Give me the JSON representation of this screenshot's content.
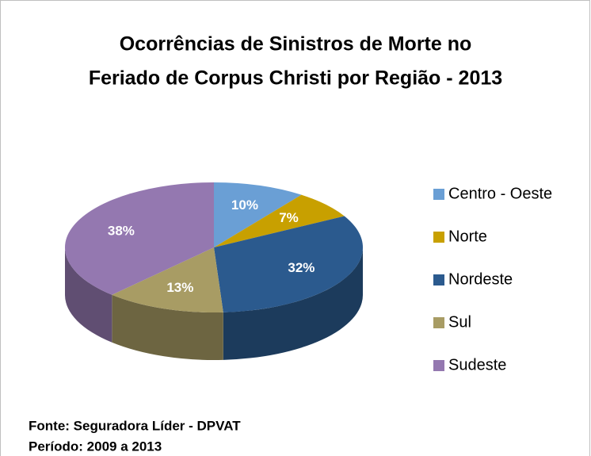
{
  "chart_data": {
    "type": "pie",
    "title": [
      "Ocorrências de Sinistros de Morte no",
      "Feriado de Corpus Christi por Região - 2013"
    ],
    "categories": [
      "Centro - Oeste",
      "Norte",
      "Nordeste",
      "Sul",
      "Sudeste"
    ],
    "values": [
      10,
      7,
      32,
      13,
      38
    ],
    "value_labels": [
      "10%",
      "7%",
      "32%",
      "13%",
      "38%"
    ],
    "colors": [
      "#6a9fd5",
      "#c8a000",
      "#2b5a8e",
      "#a89c64",
      "#9478b0"
    ],
    "legend": "right",
    "notes": [
      "Fonte: Seguradora Líder - DPVAT",
      "Período: 2009 a 2013"
    ]
  }
}
